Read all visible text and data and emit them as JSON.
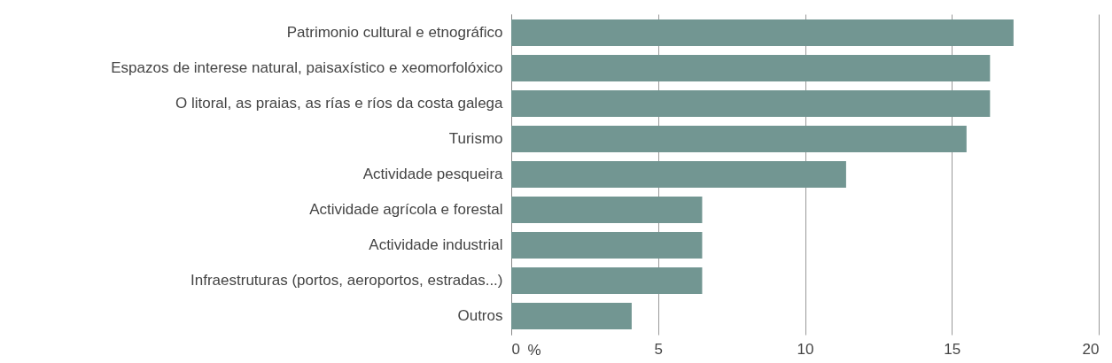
{
  "chart_data": {
    "type": "bar",
    "orientation": "horizontal",
    "xlabel": "%",
    "categories": [
      "Patrimonio cultural e etnográfico",
      "Espazos de interese natural, paisaxístico e xeomorfolóxico",
      "O litoral, as praias, as rías e ríos da costa galega",
      "Turismo",
      "Actividade pesqueira",
      "Actividade agrícola e forestal",
      "Actividade industrial",
      "Infraestruturas (portos, aeroportos, estradas...)",
      "Outros"
    ],
    "values": [
      17.1,
      16.3,
      16.3,
      15.5,
      11.4,
      6.5,
      6.5,
      6.5,
      4.1
    ],
    "color": "#729692",
    "xlim": [
      0,
      20
    ],
    "xticks": [
      0,
      5,
      10,
      15,
      20
    ],
    "grid": "x"
  }
}
